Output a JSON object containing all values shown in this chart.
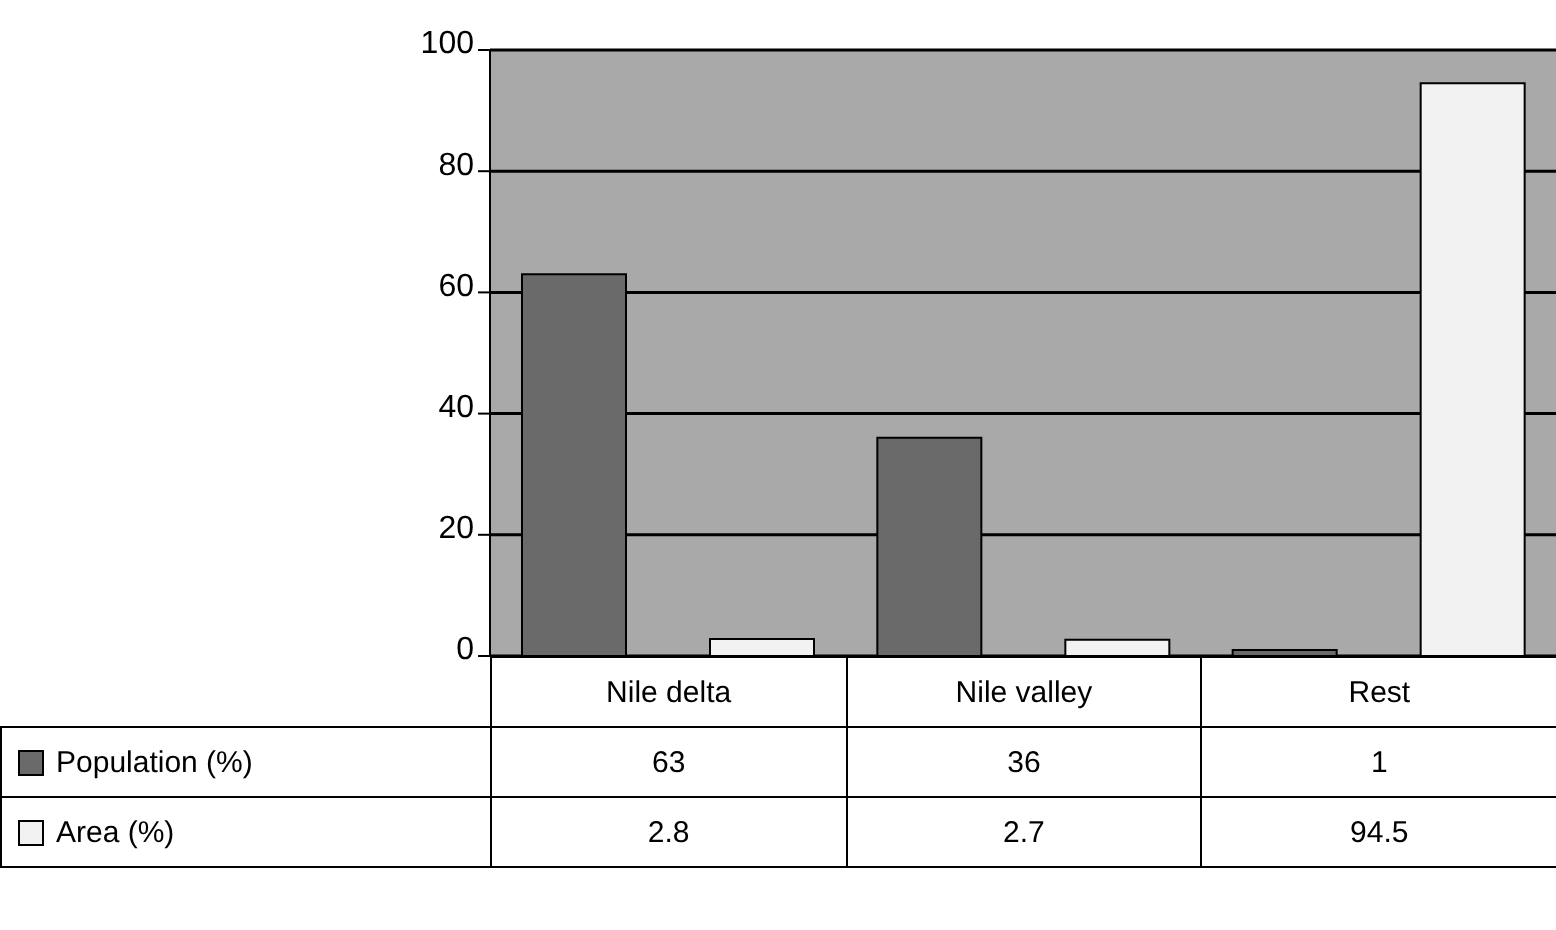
{
  "chart_data": {
    "type": "bar",
    "categories": [
      "Nile delta",
      "Nile valley",
      "Rest"
    ],
    "series": [
      {
        "name": "Population (%)",
        "color": "#6a6a6a",
        "values": [
          63,
          36,
          1
        ]
      },
      {
        "name": "Area (%)",
        "color": "#f2f2f2",
        "values": [
          2.8,
          2.7,
          94.5
        ]
      }
    ],
    "ylim": [
      0,
      100
    ],
    "yticks": [
      0,
      20,
      40,
      60,
      80,
      100
    ],
    "grid": "y",
    "legend": "bottom left",
    "data_labels": true
  }
}
